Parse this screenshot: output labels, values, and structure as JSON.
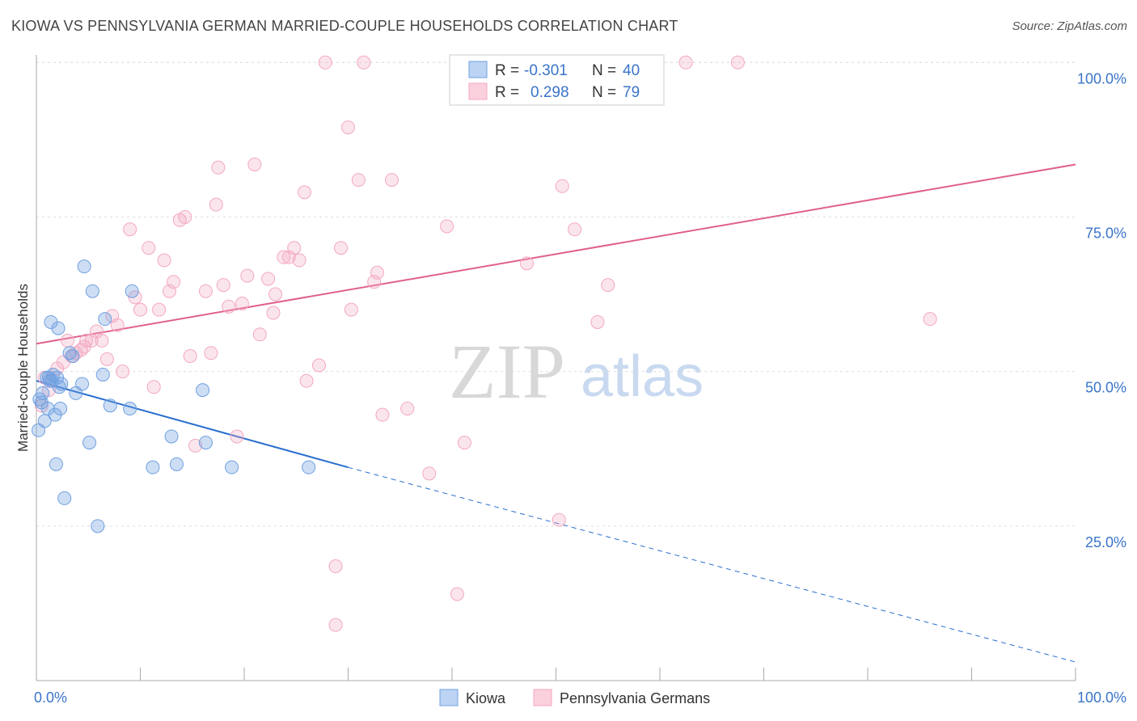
{
  "title": "KIOWA VS PENNSYLVANIA GERMAN MARRIED-COUPLE HOUSEHOLDS CORRELATION CHART",
  "source": "Source: ZipAtlas.com",
  "watermark": {
    "zip": "ZIP",
    "atlas": "atlas"
  },
  "colors": {
    "kiowa": "#6fa0e0",
    "kiowa_line": "#2a6fd0",
    "penn": "#f3a8c0",
    "penn_line": "#e0608a",
    "tick": "#3a74c9",
    "grid": "#dddddd"
  },
  "stats": [
    {
      "r_label": "R =",
      "r_value": "-0.301",
      "n_label": "N =",
      "n_value": "40"
    },
    {
      "r_label": "R =",
      "r_value": "0.298",
      "n_label": "N =",
      "n_value": "79"
    }
  ],
  "chart_data": {
    "type": "scatter",
    "title": "KIOWA VS PENNSYLVANIA GERMAN MARRIED-COUPLE HOUSEHOLDS CORRELATION CHART",
    "xlabel": "",
    "ylabel": "Married-couple Households",
    "xlim": [
      0,
      100
    ],
    "ylim": [
      0,
      102
    ],
    "x_tick_labels": [
      "0.0%",
      "100.0%"
    ],
    "y_ticks": [
      25,
      50,
      75,
      100
    ],
    "y_tick_labels": [
      "25.0%",
      "50.0%",
      "75.0%",
      "100.0%"
    ],
    "legend": [
      "Kiowa",
      "Pennsylvania Germans"
    ],
    "series": [
      {
        "name": "Kiowa",
        "points": [
          [
            0.2,
            40.5
          ],
          [
            0.5,
            45
          ],
          [
            0.6,
            46.5
          ],
          [
            0.8,
            42
          ],
          [
            1.0,
            49
          ],
          [
            1.1,
            44
          ],
          [
            1.3,
            48.5
          ],
          [
            1.4,
            58
          ],
          [
            1.5,
            48.5
          ],
          [
            1.6,
            49.5
          ],
          [
            1.8,
            43
          ],
          [
            1.9,
            35
          ],
          [
            2.0,
            49
          ],
          [
            2.1,
            57
          ],
          [
            2.3,
            44
          ],
          [
            2.4,
            48
          ],
          [
            2.7,
            29.5
          ],
          [
            3.2,
            53
          ],
          [
            3.8,
            46.5
          ],
          [
            4.4,
            48
          ],
          [
            4.6,
            67
          ],
          [
            5.1,
            38.5
          ],
          [
            5.4,
            63
          ],
          [
            5.9,
            25
          ],
          [
            6.4,
            49.5
          ],
          [
            6.6,
            58.5
          ],
          [
            7.1,
            44.5
          ],
          [
            9.0,
            44
          ],
          [
            9.2,
            63
          ],
          [
            11.2,
            34.5
          ],
          [
            13.0,
            39.5
          ],
          [
            13.5,
            35
          ],
          [
            16.0,
            47
          ],
          [
            16.3,
            38.5
          ],
          [
            18.8,
            34.5
          ],
          [
            26.2,
            34.5
          ],
          [
            0.3,
            45.5
          ],
          [
            1.2,
            49
          ],
          [
            2.2,
            47.5
          ],
          [
            3.5,
            52.5
          ]
        ],
        "trend": {
          "x": [
            0,
            30
          ],
          "y": [
            48.5,
            34.5
          ],
          "dashed_to": {
            "x": 100,
            "y": 3
          }
        }
      },
      {
        "name": "Pennsylvania Germans",
        "points": [
          [
            0.5,
            44.5
          ],
          [
            0.8,
            49
          ],
          [
            1.2,
            47
          ],
          [
            2.0,
            50.5
          ],
          [
            2.6,
            51.5
          ],
          [
            3.0,
            55
          ],
          [
            3.4,
            52.5
          ],
          [
            3.8,
            53
          ],
          [
            4.3,
            53.5
          ],
          [
            4.8,
            55
          ],
          [
            5.3,
            55
          ],
          [
            5.8,
            56.5
          ],
          [
            6.3,
            55
          ],
          [
            6.8,
            52
          ],
          [
            7.3,
            59
          ],
          [
            7.8,
            57.5
          ],
          [
            8.3,
            50
          ],
          [
            9.0,
            73
          ],
          [
            9.5,
            62
          ],
          [
            10.0,
            60
          ],
          [
            10.8,
            70
          ],
          [
            11.3,
            47.5
          ],
          [
            11.8,
            60
          ],
          [
            12.3,
            68
          ],
          [
            12.8,
            63
          ],
          [
            13.2,
            64.5
          ],
          [
            13.8,
            74.5
          ],
          [
            14.3,
            75
          ],
          [
            14.8,
            52.5
          ],
          [
            15.3,
            38
          ],
          [
            16.3,
            63
          ],
          [
            16.8,
            53
          ],
          [
            17.3,
            77
          ],
          [
            18.0,
            64
          ],
          [
            18.5,
            60.5
          ],
          [
            19.3,
            39.5
          ],
          [
            19.8,
            61
          ],
          [
            20.3,
            65.5
          ],
          [
            21.0,
            83.5
          ],
          [
            21.5,
            56
          ],
          [
            22.3,
            65
          ],
          [
            23.0,
            62.5
          ],
          [
            23.8,
            68.5
          ],
          [
            24.3,
            68.5
          ],
          [
            24.8,
            70
          ],
          [
            25.3,
            68
          ],
          [
            25.8,
            79
          ],
          [
            26.0,
            48.5
          ],
          [
            27.2,
            51
          ],
          [
            28.8,
            18.5
          ],
          [
            28.8,
            9
          ],
          [
            29.3,
            70
          ],
          [
            30.0,
            89.5
          ],
          [
            30.3,
            60
          ],
          [
            31.0,
            81
          ],
          [
            31.5,
            100
          ],
          [
            32.5,
            64.5
          ],
          [
            32.8,
            66
          ],
          [
            33.3,
            43
          ],
          [
            34.2,
            81
          ],
          [
            35.7,
            44
          ],
          [
            37.8,
            33.5
          ],
          [
            39.5,
            73.5
          ],
          [
            40.5,
            14
          ],
          [
            41.2,
            38.5
          ],
          [
            47.2,
            67.5
          ],
          [
            50.3,
            26
          ],
          [
            50.6,
            80
          ],
          [
            51.8,
            73
          ],
          [
            54.0,
            58
          ],
          [
            55.0,
            64
          ],
          [
            58.0,
            100
          ],
          [
            62.5,
            100
          ],
          [
            67.5,
            100
          ],
          [
            86.0,
            58.5
          ],
          [
            27.8,
            100
          ],
          [
            17.5,
            83
          ],
          [
            22.8,
            59.5
          ],
          [
            4.6,
            54
          ]
        ],
        "trend": {
          "x": [
            0,
            100
          ],
          "y": [
            54.5,
            83.5
          ]
        }
      }
    ]
  }
}
